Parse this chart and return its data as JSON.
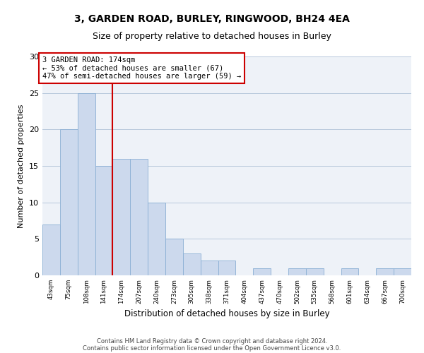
{
  "title1": "3, GARDEN ROAD, BURLEY, RINGWOOD, BH24 4EA",
  "title2": "Size of property relative to detached houses in Burley",
  "xlabel": "Distribution of detached houses by size in Burley",
  "ylabel": "Number of detached properties",
  "categories": [
    "43sqm",
    "75sqm",
    "108sqm",
    "141sqm",
    "174sqm",
    "207sqm",
    "240sqm",
    "273sqm",
    "305sqm",
    "338sqm",
    "371sqm",
    "404sqm",
    "437sqm",
    "470sqm",
    "502sqm",
    "535sqm",
    "568sqm",
    "601sqm",
    "634sqm",
    "667sqm",
    "700sqm"
  ],
  "values": [
    7,
    20,
    25,
    15,
    16,
    16,
    10,
    5,
    3,
    2,
    2,
    0,
    1,
    0,
    1,
    1,
    0,
    1,
    0,
    1,
    1
  ],
  "bar_color": "#ccd9ed",
  "bar_edge_color": "#8aafd4",
  "vline_x": 3.5,
  "vline_color": "#cc0000",
  "annotation_text": "3 GARDEN ROAD: 174sqm\n← 53% of detached houses are smaller (67)\n47% of semi-detached houses are larger (59) →",
  "annotation_box_color": "#cc0000",
  "ylim": [
    0,
    30
  ],
  "yticks": [
    0,
    5,
    10,
    15,
    20,
    25,
    30
  ],
  "footer1": "Contains HM Land Registry data © Crown copyright and database right 2024.",
  "footer2": "Contains public sector information licensed under the Open Government Licence v3.0.",
  "background_color": "#eef2f8"
}
